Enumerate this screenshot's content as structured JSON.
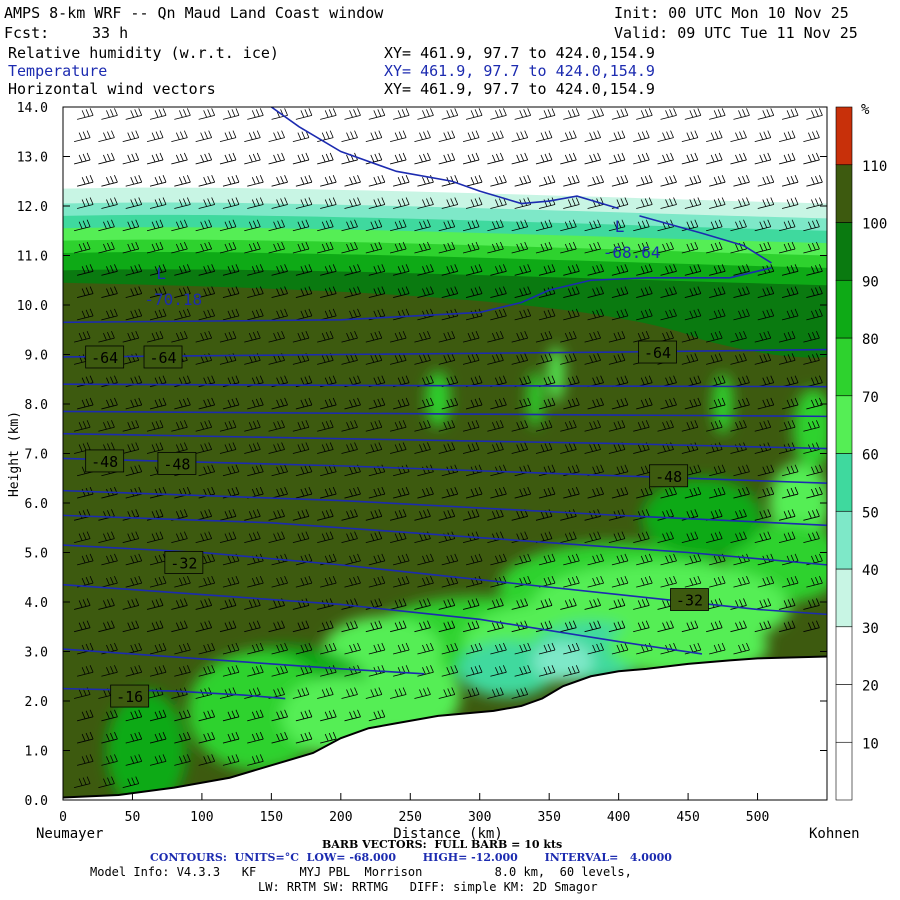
{
  "header": {
    "title": "AMPS 8-km WRF -- Qn Maud Land Coast window",
    "init": "Init: 00 UTC Mon 10 Nov 25",
    "fcst_label": "Fcst:",
    "fcst_value": "33 h",
    "valid": "Valid: 09 UTC Tue 11 Nov 25",
    "fields": [
      {
        "name": "Relative humidity (w.r.t. ice)",
        "xy": "XY= 461.9, 97.7 to 424.0,154.9"
      },
      {
        "name": "Temperature",
        "xy": "XY= 461.9, 97.7 to 424.0,154.9"
      },
      {
        "name": "Horizontal wind vectors",
        "xy": "XY= 461.9, 97.7 to 424.0,154.9"
      }
    ]
  },
  "colors": {
    "contour": "#1c2bb0",
    "dark_olive": "#3d5a0f",
    "terrain_line": "#000000"
  },
  "chart_data": {
    "type": "heatmap",
    "ylabel": "Height (km)",
    "xlabel": "Distance (km)",
    "x_left_label": "Neumayer",
    "x_right_label": "Kohnen",
    "xlim": [
      0,
      550
    ],
    "ylim": [
      0,
      14
    ],
    "x_ticks": [
      0,
      50,
      100,
      150,
      200,
      250,
      300,
      350,
      400,
      450,
      500
    ],
    "y_ticks": [
      "0.0",
      "1.0",
      "2.0",
      "3.0",
      "4.0",
      "5.0",
      "6.0",
      "7.0",
      "8.0",
      "9.0",
      "10.0",
      "11.0",
      "12.0",
      "13.0",
      "14.0"
    ],
    "colorbar": {
      "unit": "%",
      "labels": [
        "10",
        "20",
        "30",
        "40",
        "50",
        "60",
        "70",
        "80",
        "90",
        "100",
        "110"
      ],
      "boundaries": [
        0,
        10,
        20,
        30,
        40,
        50,
        60,
        70,
        80,
        90,
        100,
        110,
        120
      ],
      "colors": [
        "#ffffff",
        "#ffffff",
        "#ffffff",
        "#c8f5e4",
        "#7ee8c8",
        "#3fd99e",
        "#55ee55",
        "#2ed22e",
        "#0eaa16",
        "#0a7a10",
        "#3d5a0f",
        "#c8300a"
      ]
    },
    "terrain_profile": [
      [
        0,
        0.05
      ],
      [
        40,
        0.1
      ],
      [
        80,
        0.25
      ],
      [
        120,
        0.45
      ],
      [
        150,
        0.7
      ],
      [
        180,
        0.95
      ],
      [
        200,
        1.25
      ],
      [
        220,
        1.45
      ],
      [
        240,
        1.55
      ],
      [
        270,
        1.7
      ],
      [
        290,
        1.75
      ],
      [
        310,
        1.8
      ],
      [
        330,
        1.9
      ],
      [
        345,
        2.05
      ],
      [
        360,
        2.3
      ],
      [
        380,
        2.5
      ],
      [
        400,
        2.6
      ],
      [
        420,
        2.65
      ],
      [
        450,
        2.75
      ],
      [
        480,
        2.82
      ],
      [
        500,
        2.86
      ],
      [
        550,
        2.9
      ]
    ],
    "temperature_contours": [
      {
        "label": "-16",
        "points": [
          [
            0,
            2.25
          ],
          [
            80,
            2.2
          ],
          [
            130,
            2.12
          ],
          [
            160,
            2.05
          ]
        ]
      },
      {
        "label": "-32",
        "points": [
          [
            0,
            5.15
          ],
          [
            100,
            5.0
          ],
          [
            200,
            4.75
          ],
          [
            300,
            4.45
          ],
          [
            400,
            4.15
          ],
          [
            500,
            3.85
          ],
          [
            550,
            3.75
          ]
        ]
      },
      {
        "label": "",
        "points": [
          [
            0,
            3.05
          ],
          [
            100,
            2.85
          ],
          [
            200,
            2.65
          ],
          [
            260,
            2.55
          ]
        ]
      },
      {
        "label": "",
        "points": [
          [
            0,
            4.35
          ],
          [
            100,
            4.15
          ],
          [
            200,
            3.95
          ],
          [
            300,
            3.65
          ],
          [
            400,
            3.2
          ],
          [
            460,
            2.95
          ]
        ]
      },
      {
        "label": "",
        "points": [
          [
            0,
            5.75
          ],
          [
            150,
            5.6
          ],
          [
            300,
            5.3
          ],
          [
            450,
            5.0
          ],
          [
            550,
            4.75
          ]
        ]
      },
      {
        "label": "",
        "points": [
          [
            0,
            6.25
          ],
          [
            200,
            6.05
          ],
          [
            400,
            5.75
          ],
          [
            550,
            5.55
          ]
        ]
      },
      {
        "label": "-48",
        "points": [
          [
            0,
            6.9
          ],
          [
            200,
            6.75
          ],
          [
            400,
            6.55
          ],
          [
            550,
            6.4
          ]
        ]
      },
      {
        "label": "",
        "points": [
          [
            0,
            7.4
          ],
          [
            200,
            7.3
          ],
          [
            400,
            7.2
          ],
          [
            550,
            7.1
          ]
        ]
      },
      {
        "label": "",
        "points": [
          [
            0,
            7.85
          ],
          [
            275,
            7.8
          ],
          [
            550,
            7.75
          ]
        ]
      },
      {
        "label": "",
        "points": [
          [
            0,
            8.4
          ],
          [
            275,
            8.37
          ],
          [
            550,
            8.35
          ]
        ]
      },
      {
        "label": "-64",
        "points": [
          [
            0,
            8.95
          ],
          [
            200,
            9.0
          ],
          [
            400,
            9.05
          ],
          [
            550,
            9.1
          ]
        ]
      },
      {
        "label": "",
        "points": [
          [
            0,
            9.65
          ],
          [
            200,
            9.7
          ],
          [
            300,
            9.85
          ],
          [
            330,
            10.05
          ],
          [
            350,
            10.3
          ],
          [
            380,
            10.5
          ],
          [
            420,
            10.55
          ],
          [
            480,
            10.55
          ],
          [
            510,
            10.75
          ]
        ]
      },
      {
        "label": "",
        "points": [
          [
            150,
            14.0
          ],
          [
            170,
            13.6
          ],
          [
            200,
            13.1
          ],
          [
            240,
            12.7
          ],
          [
            280,
            12.5
          ],
          [
            300,
            12.3
          ],
          [
            330,
            12.05
          ],
          [
            350,
            12.1
          ],
          [
            370,
            12.2
          ],
          [
            400,
            11.95
          ]
        ]
      },
      {
        "label": "",
        "points": [
          [
            415,
            11.8
          ],
          [
            460,
            11.45
          ],
          [
            490,
            11.2
          ],
          [
            510,
            10.85
          ]
        ]
      }
    ],
    "low_markers": [
      {
        "letter": "L",
        "value": "-70.18",
        "x": 60,
        "y": 10.4
      },
      {
        "letter": "L",
        "value": "-68.64",
        "x": 390,
        "y": 11.35
      }
    ],
    "contour_labels": [
      {
        "text": "-64",
        "x": 30,
        "y": 8.95
      },
      {
        "text": "-64",
        "x": 72,
        "y": 8.95
      },
      {
        "text": "-64",
        "x": 428,
        "y": 9.05
      },
      {
        "text": "-48",
        "x": 30,
        "y": 6.85
      },
      {
        "text": "-48",
        "x": 82,
        "y": 6.8
      },
      {
        "text": "-48",
        "x": 436,
        "y": 6.55
      },
      {
        "text": "-32",
        "x": 87,
        "y": 4.8
      },
      {
        "text": "-32",
        "x": 451,
        "y": 4.05
      },
      {
        "text": "-16",
        "x": 48,
        "y": 2.1
      }
    ]
  },
  "footer": {
    "barb": "BARB VECTORS:  FULL BARB = 10 kts",
    "contours": "CONTOURS:  UNITS=°C  LOW= -68.000       HIGH= -12.000       INTERVAL=   4.0000",
    "model_info_1": "Model Info: V4.3.3   KF      MYJ PBL  Morrison          8.0 km,  60 levels,",
    "model_info_2": "LW: RRTM SW: RRTMG   DIFF: simple KM: 2D Smagor"
  }
}
